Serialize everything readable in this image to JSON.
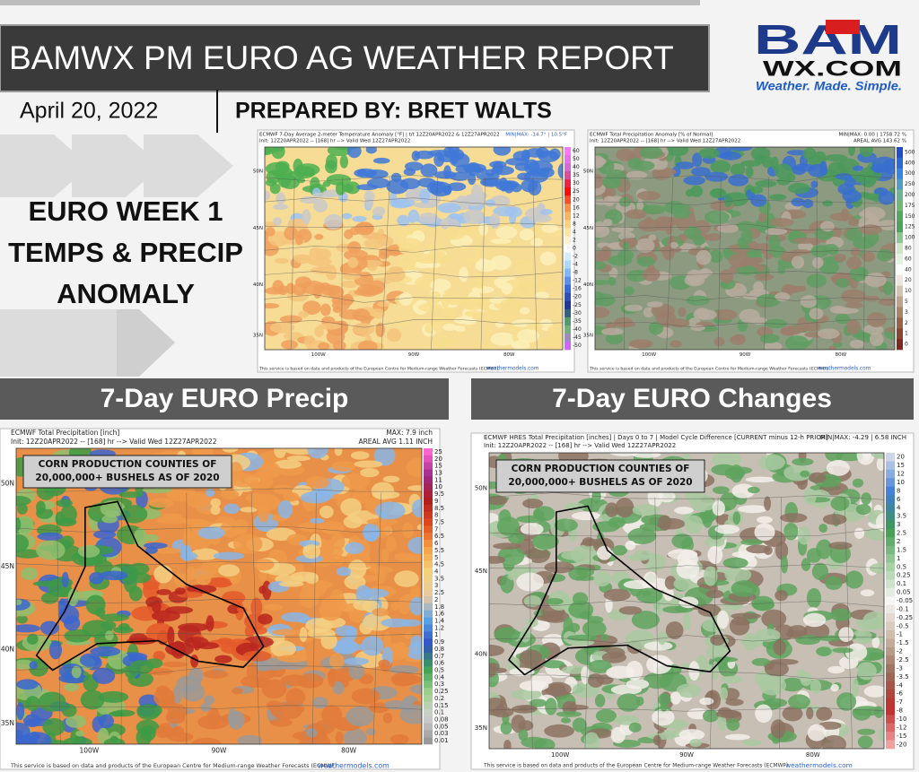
{
  "header": {
    "title": "BAMWX PM EURO AG WEATHER REPORT",
    "date": "April 20, 2022",
    "prepared_by": "PREPARED BY: BRET WALTS"
  },
  "logo": {
    "brand": "BAM",
    "domain": "WX.COM",
    "tagline": "Weather. Made. Simple."
  },
  "side_label": [
    "EURO WEEK 1",
    "TEMPS & PRECIP",
    "ANOMALY"
  ],
  "sections": [
    "7-Day EURO Precip",
    "7-Day EURO Changes"
  ],
  "maps": [
    {
      "title": "ECMWF 7-Day Average 2-meter Temperature Anomaly [°F] | t/t 12Z20APR2022 & 12Z27APR2022",
      "init": "Init: 12Z20APR2022 -- [168] hr --> Valid Wed 12Z27APR2022",
      "right": [
        "MIN|MAX: -14.7° | 10.5°F"
      ],
      "lat_labels": [
        "50N",
        "45N",
        "40N",
        "35N"
      ],
      "lon_labels": [
        "100W",
        "90W",
        "80W"
      ],
      "colorbar": [
        "60",
        "50",
        "40",
        "35",
        "30",
        "25",
        "20",
        "16",
        "12",
        "8",
        "4",
        "2",
        "0",
        "-2",
        "-4",
        "-8",
        "-12",
        "-16",
        "-20",
        "-25",
        "-30",
        "-35",
        "-40",
        "-45",
        "-50"
      ],
      "footer": "This service is based on data and products of the European Centre for Medium-range Weather Forecasts (ECMWF)",
      "credit": "weathermodels.com"
    },
    {
      "title": "ECMWF Total Precipitation Anomaly [% of Normal]",
      "init": "Init: 12Z20APR2022 -- [168] hr --> Valid Wed 12Z27APR2022",
      "right": [
        "MIN|MAX: 0.00 | 1758.72 %",
        "AREAL AVG 143.62 %"
      ],
      "lat_labels": [
        "50N",
        "45N",
        "40N",
        "35N"
      ],
      "lon_labels": [
        "100W",
        "90W",
        "80W"
      ],
      "colorbar": [
        "500",
        "400",
        "300",
        "250",
        "200",
        "175",
        "150",
        "125",
        "100",
        "80",
        "60",
        "40",
        "20",
        "10",
        "5",
        "3",
        "2",
        "1",
        "0"
      ],
      "footer": "This service is based on data and products of the European Centre for Medium-range Weather Forecasts (ECMWF)",
      "credit": "weathermodels.com"
    },
    {
      "title": "ECMWF Total Precipitation [inch]",
      "init": "Init: 12Z20APR2022 -- [168] hr --> Valid Wed 12Z27APR2022",
      "right": [
        "MAX: 7.9 inch",
        "AREAL AVG 1.11 INCH"
      ],
      "lat_labels": [
        "50N",
        "45N",
        "40N",
        "35N"
      ],
      "lon_labels": [
        "100W",
        "90W",
        "80W"
      ],
      "colorbar": [
        "25",
        "20",
        "15",
        "13",
        "11",
        "10",
        "9.5",
        "9",
        "8.5",
        "8",
        "7.5",
        "7",
        "6.5",
        "6",
        "5.5",
        "5",
        "4.5",
        "4",
        "3.5",
        "3",
        "2.5",
        "2",
        "1.8",
        "1.6",
        "1.4",
        "1.2",
        "1",
        "0.9",
        "0.8",
        "0.7",
        "0.6",
        "0.5",
        "0.4",
        "0.3",
        "0.25",
        "0.2",
        "0.15",
        "0.1",
        "0.08",
        "0.05",
        "0.03",
        "0.01"
      ],
      "corn_label": [
        "CORN PRODUCTION COUNTIES OF",
        "20,000,000+ BUSHELS AS OF 2020"
      ],
      "footer": "This service is based on data and products of the European Centre for Medium-range Weather Forecasts (ECMWF)",
      "credit": "weathermodels.com"
    },
    {
      "title": "ECMWF HRES Total Precipitation [inches] | Days 0 to 7 | Model Cycle Difference [CURRENT minus 12-h PRIOR]",
      "init": "Init: 12Z20APR2022 -- [168] hr --> Valid Wed 12Z27APR2022",
      "right": [
        "MIN|MAX: -4.29 | 6.58 INCH"
      ],
      "lat_labels": [
        "50N",
        "45N",
        "40N",
        "35N"
      ],
      "lon_labels": [
        "100W",
        "90W",
        "80W"
      ],
      "colorbar": [
        "20",
        "15",
        "12",
        "10",
        "8",
        "6",
        "4",
        "3.5",
        "3",
        "2.5",
        "2",
        "1.5",
        "1",
        "0.5",
        "0.25",
        "0.1",
        "0.05",
        "-0.05",
        "-0.1",
        "-0.25",
        "-0.5",
        "-1",
        "-1.5",
        "-2",
        "-2.5",
        "-3",
        "-3.5",
        "-4",
        "-6",
        "-7",
        "-8",
        "-10",
        "-12",
        "-15",
        "-20"
      ],
      "corn_label": [
        "CORN PRODUCTION COUNTIES OF",
        "20,000,000+ BUSHELS AS OF 2020"
      ],
      "footer": "This service is based on data and products of the European Centre for Medium-range Weather Forecasts (ECMWF)",
      "credit": "weathermodels.com"
    }
  ]
}
